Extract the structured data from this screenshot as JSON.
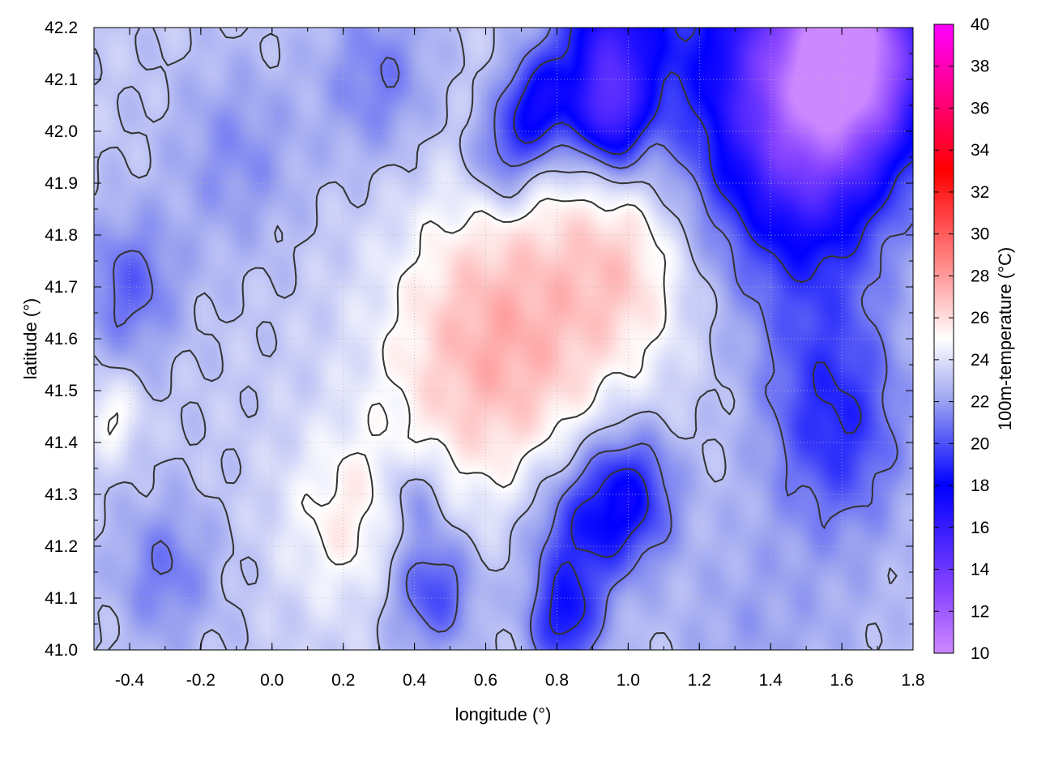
{
  "chart_data": {
    "type": "heatmap",
    "title": "",
    "xlabel": "longitude (°)",
    "ylabel": "latitude (°)",
    "colorbar_label": "100m-temperature (°C)",
    "xlim": [
      -0.5,
      1.8
    ],
    "ylim": [
      41.0,
      42.2
    ],
    "clim": [
      10,
      40
    ],
    "x_ticks": [
      "-0.4",
      "-0.2",
      "0.0",
      "0.2",
      "0.4",
      "0.6",
      "0.8",
      "1.0",
      "1.2",
      "1.4",
      "1.6",
      "1.8"
    ],
    "x_tick_values": [
      -0.4,
      -0.2,
      0.0,
      0.2,
      0.4,
      0.6,
      0.8,
      1.0,
      1.2,
      1.4,
      1.6,
      1.8
    ],
    "y_ticks": [
      "41.0",
      "41.1",
      "41.2",
      "41.3",
      "41.4",
      "41.5",
      "41.6",
      "41.7",
      "41.8",
      "41.9",
      "42.0",
      "42.1",
      "42.2"
    ],
    "y_tick_values": [
      41.0,
      41.1,
      41.2,
      41.3,
      41.4,
      41.5,
      41.6,
      41.7,
      41.8,
      41.9,
      42.0,
      42.1,
      42.2
    ],
    "colorbar_ticks": [
      "10",
      "12",
      "14",
      "16",
      "18",
      "20",
      "22",
      "24",
      "26",
      "28",
      "30",
      "32",
      "34",
      "36",
      "38",
      "40"
    ],
    "colorbar_tick_values": [
      10,
      12,
      14,
      16,
      18,
      20,
      22,
      24,
      26,
      28,
      30,
      32,
      34,
      36,
      38,
      40
    ],
    "colormap": [
      {
        "value": 10,
        "color": "#cc88ff"
      },
      {
        "value": 13,
        "color": "#8844ff"
      },
      {
        "value": 18,
        "color": "#0000ff"
      },
      {
        "value": 22,
        "color": "#9aa2f0"
      },
      {
        "value": 25,
        "color": "#ffffff"
      },
      {
        "value": 28,
        "color": "#ff9a9a"
      },
      {
        "value": 33,
        "color": "#ff0000"
      },
      {
        "value": 40,
        "color": "#ff00ff"
      }
    ],
    "grid": true,
    "contours": true,
    "field_features": [
      {
        "lon": 0.75,
        "lat": 41.65,
        "temp": 25.8,
        "radius": 0.32
      },
      {
        "lon": 0.55,
        "lat": 41.55,
        "temp": 25.5,
        "radius": 0.28
      },
      {
        "lon": 0.2,
        "lat": 41.25,
        "temp": 25.3,
        "radius": 0.18
      },
      {
        "lon": -0.45,
        "lat": 41.45,
        "temp": 25.2,
        "radius": 0.08
      },
      {
        "lon": 1.0,
        "lat": 41.75,
        "temp": 25.3,
        "radius": 0.18
      },
      {
        "lon": 1.65,
        "lat": 42.15,
        "temp": 12.5,
        "radius": 0.22
      },
      {
        "lon": 1.4,
        "lat": 42.12,
        "temp": 16.5,
        "radius": 0.3
      },
      {
        "lon": 0.95,
        "lat": 42.17,
        "temp": 16.8,
        "radius": 0.15
      },
      {
        "lon": 0.95,
        "lat": 42.02,
        "temp": 17.5,
        "radius": 0.1
      },
      {
        "lon": 0.75,
        "lat": 42.05,
        "temp": 17.8,
        "radius": 0.1
      },
      {
        "lon": 0.65,
        "lat": 41.95,
        "temp": 20.0,
        "radius": 0.1
      },
      {
        "lon": 1.5,
        "lat": 41.9,
        "temp": 19.5,
        "radius": 0.22
      },
      {
        "lon": 1.55,
        "lat": 41.55,
        "temp": 21.0,
        "radius": 0.2
      },
      {
        "lon": 1.6,
        "lat": 41.4,
        "temp": 20.5,
        "radius": 0.18
      },
      {
        "lon": 1.0,
        "lat": 41.3,
        "temp": 18.2,
        "radius": 0.13
      },
      {
        "lon": 0.85,
        "lat": 41.22,
        "temp": 19.5,
        "radius": 0.14
      },
      {
        "lon": 0.82,
        "lat": 41.05,
        "temp": 19.0,
        "radius": 0.1
      },
      {
        "lon": 0.45,
        "lat": 41.12,
        "temp": 19.5,
        "radius": 0.12
      },
      {
        "lon": 0.4,
        "lat": 41.3,
        "temp": 21.0,
        "radius": 0.08
      },
      {
        "lon": -0.4,
        "lat": 41.7,
        "temp": 20.5,
        "radius": 0.14
      },
      {
        "lon": -0.3,
        "lat": 41.15,
        "temp": 21.0,
        "radius": 0.14
      },
      {
        "lon": -0.1,
        "lat": 41.95,
        "temp": 21.5,
        "radius": 0.18
      },
      {
        "lon": 0.3,
        "lat": 42.1,
        "temp": 21.0,
        "radius": 0.16
      },
      {
        "lon": 1.5,
        "lat": 41.1,
        "temp": 22.5,
        "radius": 0.3
      },
      {
        "lon": 1.3,
        "lat": 41.02,
        "temp": 22.5,
        "radius": 0.2
      }
    ]
  }
}
